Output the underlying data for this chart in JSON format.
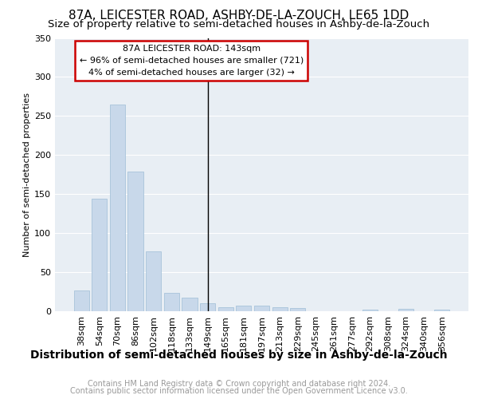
{
  "title": "87A, LEICESTER ROAD, ASHBY-DE-LA-ZOUCH, LE65 1DD",
  "subtitle": "Size of property relative to semi-detached houses in Ashby-de-la-Zouch",
  "xlabel": "Distribution of semi-detached houses by size in Ashby-de-la-Zouch",
  "ylabel": "Number of semi-detached properties",
  "footer_line1": "Contains HM Land Registry data © Crown copyright and database right 2024.",
  "footer_line2": "Contains public sector information licensed under the Open Government Licence v3.0.",
  "categories": [
    "38sqm",
    "54sqm",
    "70sqm",
    "86sqm",
    "102sqm",
    "118sqm",
    "133sqm",
    "149sqm",
    "165sqm",
    "181sqm",
    "197sqm",
    "213sqm",
    "229sqm",
    "245sqm",
    "261sqm",
    "277sqm",
    "292sqm",
    "308sqm",
    "324sqm",
    "340sqm",
    "356sqm"
  ],
  "values": [
    27,
    144,
    265,
    179,
    77,
    24,
    17,
    10,
    5,
    7,
    7,
    5,
    4,
    0,
    0,
    0,
    2,
    0,
    3,
    0,
    2
  ],
  "bar_color": "#c8d8ea",
  "bar_edge_color": "#a8c4da",
  "annotation_address": "87A LEICESTER ROAD: 143sqm",
  "annotation_line1": "← 96% of semi-detached houses are smaller (721)",
  "annotation_line2": "4% of semi-detached houses are larger (32) →",
  "ylim": [
    0,
    350
  ],
  "yticks": [
    0,
    50,
    100,
    150,
    200,
    250,
    300,
    350
  ],
  "bg_color": "#e8eef4",
  "title_fontsize": 11,
  "subtitle_fontsize": 9.5,
  "ylabel_fontsize": 8,
  "xlabel_fontsize": 10,
  "tick_fontsize": 8,
  "annotation_box_edge_color": "#cc0000",
  "vline_x": 7,
  "footer_fontsize": 7,
  "footer_color": "#999999"
}
